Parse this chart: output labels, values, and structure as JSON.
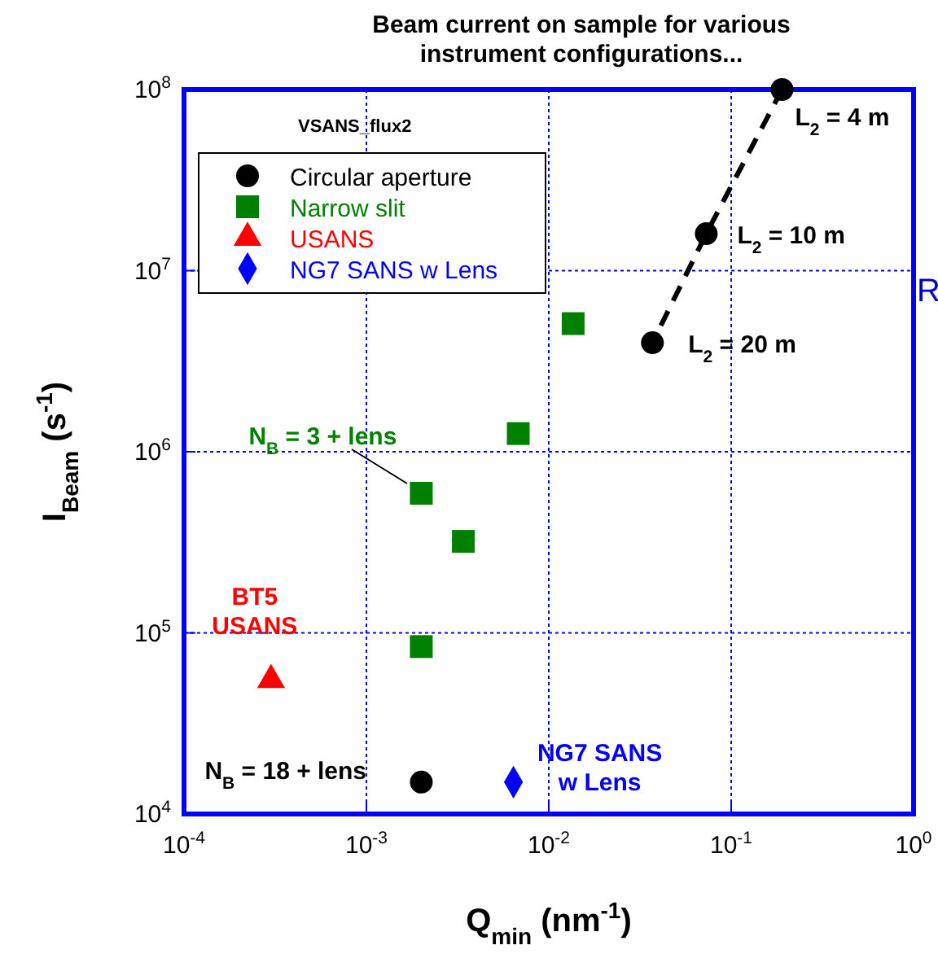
{
  "chart_data": {
    "type": "scatter",
    "title": "Beam current on sample for various\ninstrument configurations...",
    "xlabel": "Q$_{min}$ (nm$^{-1}$)",
    "ylabel": "I$_{Beam}$ (s$^{-1}$)",
    "log": "xy",
    "grid": true,
    "legend": "top left",
    "xlim": [
      0.0001,
      1
    ],
    "ylim": [
      10000,
      100000000
    ],
    "xticks": [
      {
        "value": 0.0001,
        "label": "10$^{-4}$"
      },
      {
        "value": 0.001,
        "label": "10$^{-3}$"
      },
      {
        "value": 0.01,
        "label": "10$^{-2}$"
      },
      {
        "value": 0.1,
        "label": "10$^{-1}$"
      },
      {
        "value": 1,
        "label": "10$^{0}$"
      }
    ],
    "yticks": [
      {
        "value": 10000,
        "label": "10$^{4}$"
      },
      {
        "value": 100000,
        "label": "10$^{5}$"
      },
      {
        "value": 1000000,
        "label": "10$^{6}$"
      },
      {
        "value": 10000000,
        "label": "10$^{7}$"
      },
      {
        "value": 100000000,
        "label": "10$^{8}$"
      }
    ],
    "series": [
      {
        "type": "line",
        "color": "#000000",
        "line_style": "dashed",
        "marker": "none",
        "x": [
          0.19,
          0.073,
          0.037
        ],
        "values": [
          100000000,
          16000000,
          4000000
        ]
      },
      {
        "name": "Circular aperture",
        "color": "#000000",
        "marker": "circle",
        "x": [
          0.19,
          0.073,
          0.037,
          0.002
        ],
        "values": [
          100000000,
          16000000,
          4000000,
          15000
        ]
      },
      {
        "name": "Narrow slit",
        "color": "#008000",
        "marker": "square",
        "x": [
          0.0136,
          0.0068,
          0.002,
          0.0034,
          0.002
        ],
        "values": [
          5100000,
          1260000,
          590000,
          320000,
          84000
        ]
      },
      {
        "name": "USANS",
        "color": "#ff0000",
        "marker": "triangle",
        "x": [
          0.0003
        ],
        "values": [
          55000
        ]
      },
      {
        "name": "NG7 SANS w Lens",
        "color": "#0000ff",
        "marker": "diamond",
        "x": [
          0.0064
        ],
        "values": [
          15000
        ]
      }
    ],
    "annotations": [
      "VSANS_flux2",
      {
        "text": "L$_{2}$ = 4 m",
        "x": 0.19,
        "y": 100000000
      },
      {
        "text": "L$_{2}$ = 10 m",
        "x": 0.073,
        "y": 16000000
      },
      {
        "text": "L$_{2}$ = 20 m",
        "x": 0.037,
        "y": 4000000
      },
      {
        "text": "N$_{B}$ = 3 + lens",
        "x": 0.002,
        "y": 590000
      },
      {
        "text": "BT5\nUSANS",
        "x": 0.0003,
        "y": 55000
      },
      {
        "text": "N$_{B}$ = 18 + lens",
        "x": 0.002,
        "y": 15000
      },
      {
        "text": "NG7 SANS\nw Lens",
        "x": 0.0064,
        "y": 15000
      },
      "R"
    ]
  }
}
